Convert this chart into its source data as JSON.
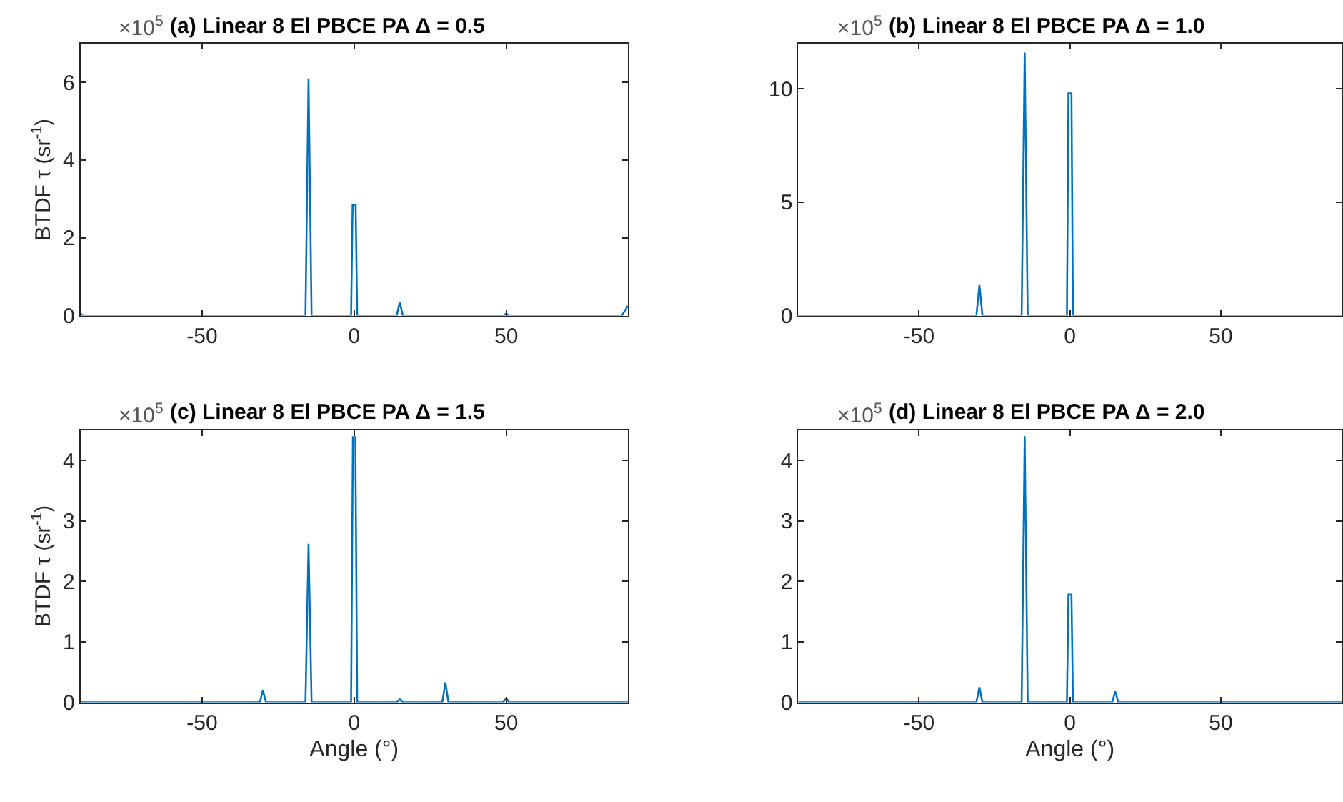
{
  "chart_data": [
    {
      "type": "line",
      "title": "(a) Linear 8 El PBCE PA Δ = 0.5",
      "annotations": [
        "×10$^{5}$"
      ],
      "ylabel": "BTDF τ (sr$^{-1}$)",
      "color": "#0072bd",
      "xlim": [
        -90,
        90
      ],
      "xticks": [
        -50,
        0,
        50
      ],
      "ylim": [
        0,
        7
      ],
      "yticks": [
        0,
        2,
        4,
        6
      ],
      "x": [
        -90,
        -89,
        -16,
        -15,
        -14,
        -1,
        -0.5,
        0.5,
        1,
        14,
        15,
        16,
        49,
        50,
        51,
        88,
        90
      ],
      "values": [
        0.05,
        0,
        0,
        6.1,
        0,
        0,
        2.85,
        2.85,
        0,
        0,
        0.35,
        0,
        0,
        0.05,
        0,
        0,
        0.25
      ]
    },
    {
      "type": "line",
      "title": "(b) Linear 8 El PBCE PA Δ = 1.0",
      "annotations": [
        "×10$^{5}$"
      ],
      "color": "#0072bd",
      "xlim": [
        -90,
        90
      ],
      "xticks": [
        -50,
        0,
        50
      ],
      "ylim": [
        0,
        12
      ],
      "yticks": [
        0,
        5,
        10
      ],
      "x": [
        -90,
        -31,
        -30,
        -29,
        -16,
        -15,
        -14,
        -1,
        -0.5,
        0.5,
        1,
        90
      ],
      "values": [
        0,
        0,
        1.35,
        0,
        0,
        11.6,
        0,
        0,
        9.8,
        9.8,
        0,
        0
      ]
    },
    {
      "type": "line",
      "title": "(c) Linear 8 El PBCE PA Δ = 1.5",
      "annotations": [
        "×10$^{5}$"
      ],
      "ylabel": "BTDF τ (sr$^{-1}$)",
      "xlabel": "Angle (°)",
      "color": "#0072bd",
      "xlim": [
        -90,
        90
      ],
      "xticks": [
        -50,
        0,
        50
      ],
      "ylim": [
        0,
        4.5
      ],
      "yticks": [
        0,
        1,
        2,
        3,
        4
      ],
      "x": [
        -90,
        -31,
        -30,
        -29,
        -16,
        -15,
        -14,
        -1,
        -0.4,
        0,
        0.4,
        1,
        14,
        15,
        16,
        29,
        30,
        31,
        49,
        50,
        51,
        90
      ],
      "values": [
        0,
        0,
        0.2,
        0,
        0,
        2.62,
        0,
        0,
        4.4,
        null,
        4.4,
        0,
        0,
        0.05,
        0,
        0,
        0.33,
        0,
        0,
        0.07,
        0,
        0
      ]
    },
    {
      "type": "line",
      "title": "(d) Linear 8 El PBCE PA Δ = 2.0",
      "annotations": [
        "×10$^{5}$"
      ],
      "xlabel": "Angle (°)",
      "color": "#0072bd",
      "xlim": [
        -90,
        90
      ],
      "xticks": [
        -50,
        0,
        50
      ],
      "ylim": [
        0,
        4.5
      ],
      "yticks": [
        0,
        1,
        2,
        3,
        4
      ],
      "x": [
        -90,
        -31,
        -30,
        -29,
        -16,
        -15,
        -14,
        -1,
        -0.5,
        0.5,
        1,
        14,
        15,
        16,
        90
      ],
      "values": [
        0,
        0,
        0.25,
        0,
        0,
        4.4,
        0,
        0,
        1.78,
        1.78,
        0,
        0,
        0.18,
        0,
        0
      ]
    }
  ]
}
